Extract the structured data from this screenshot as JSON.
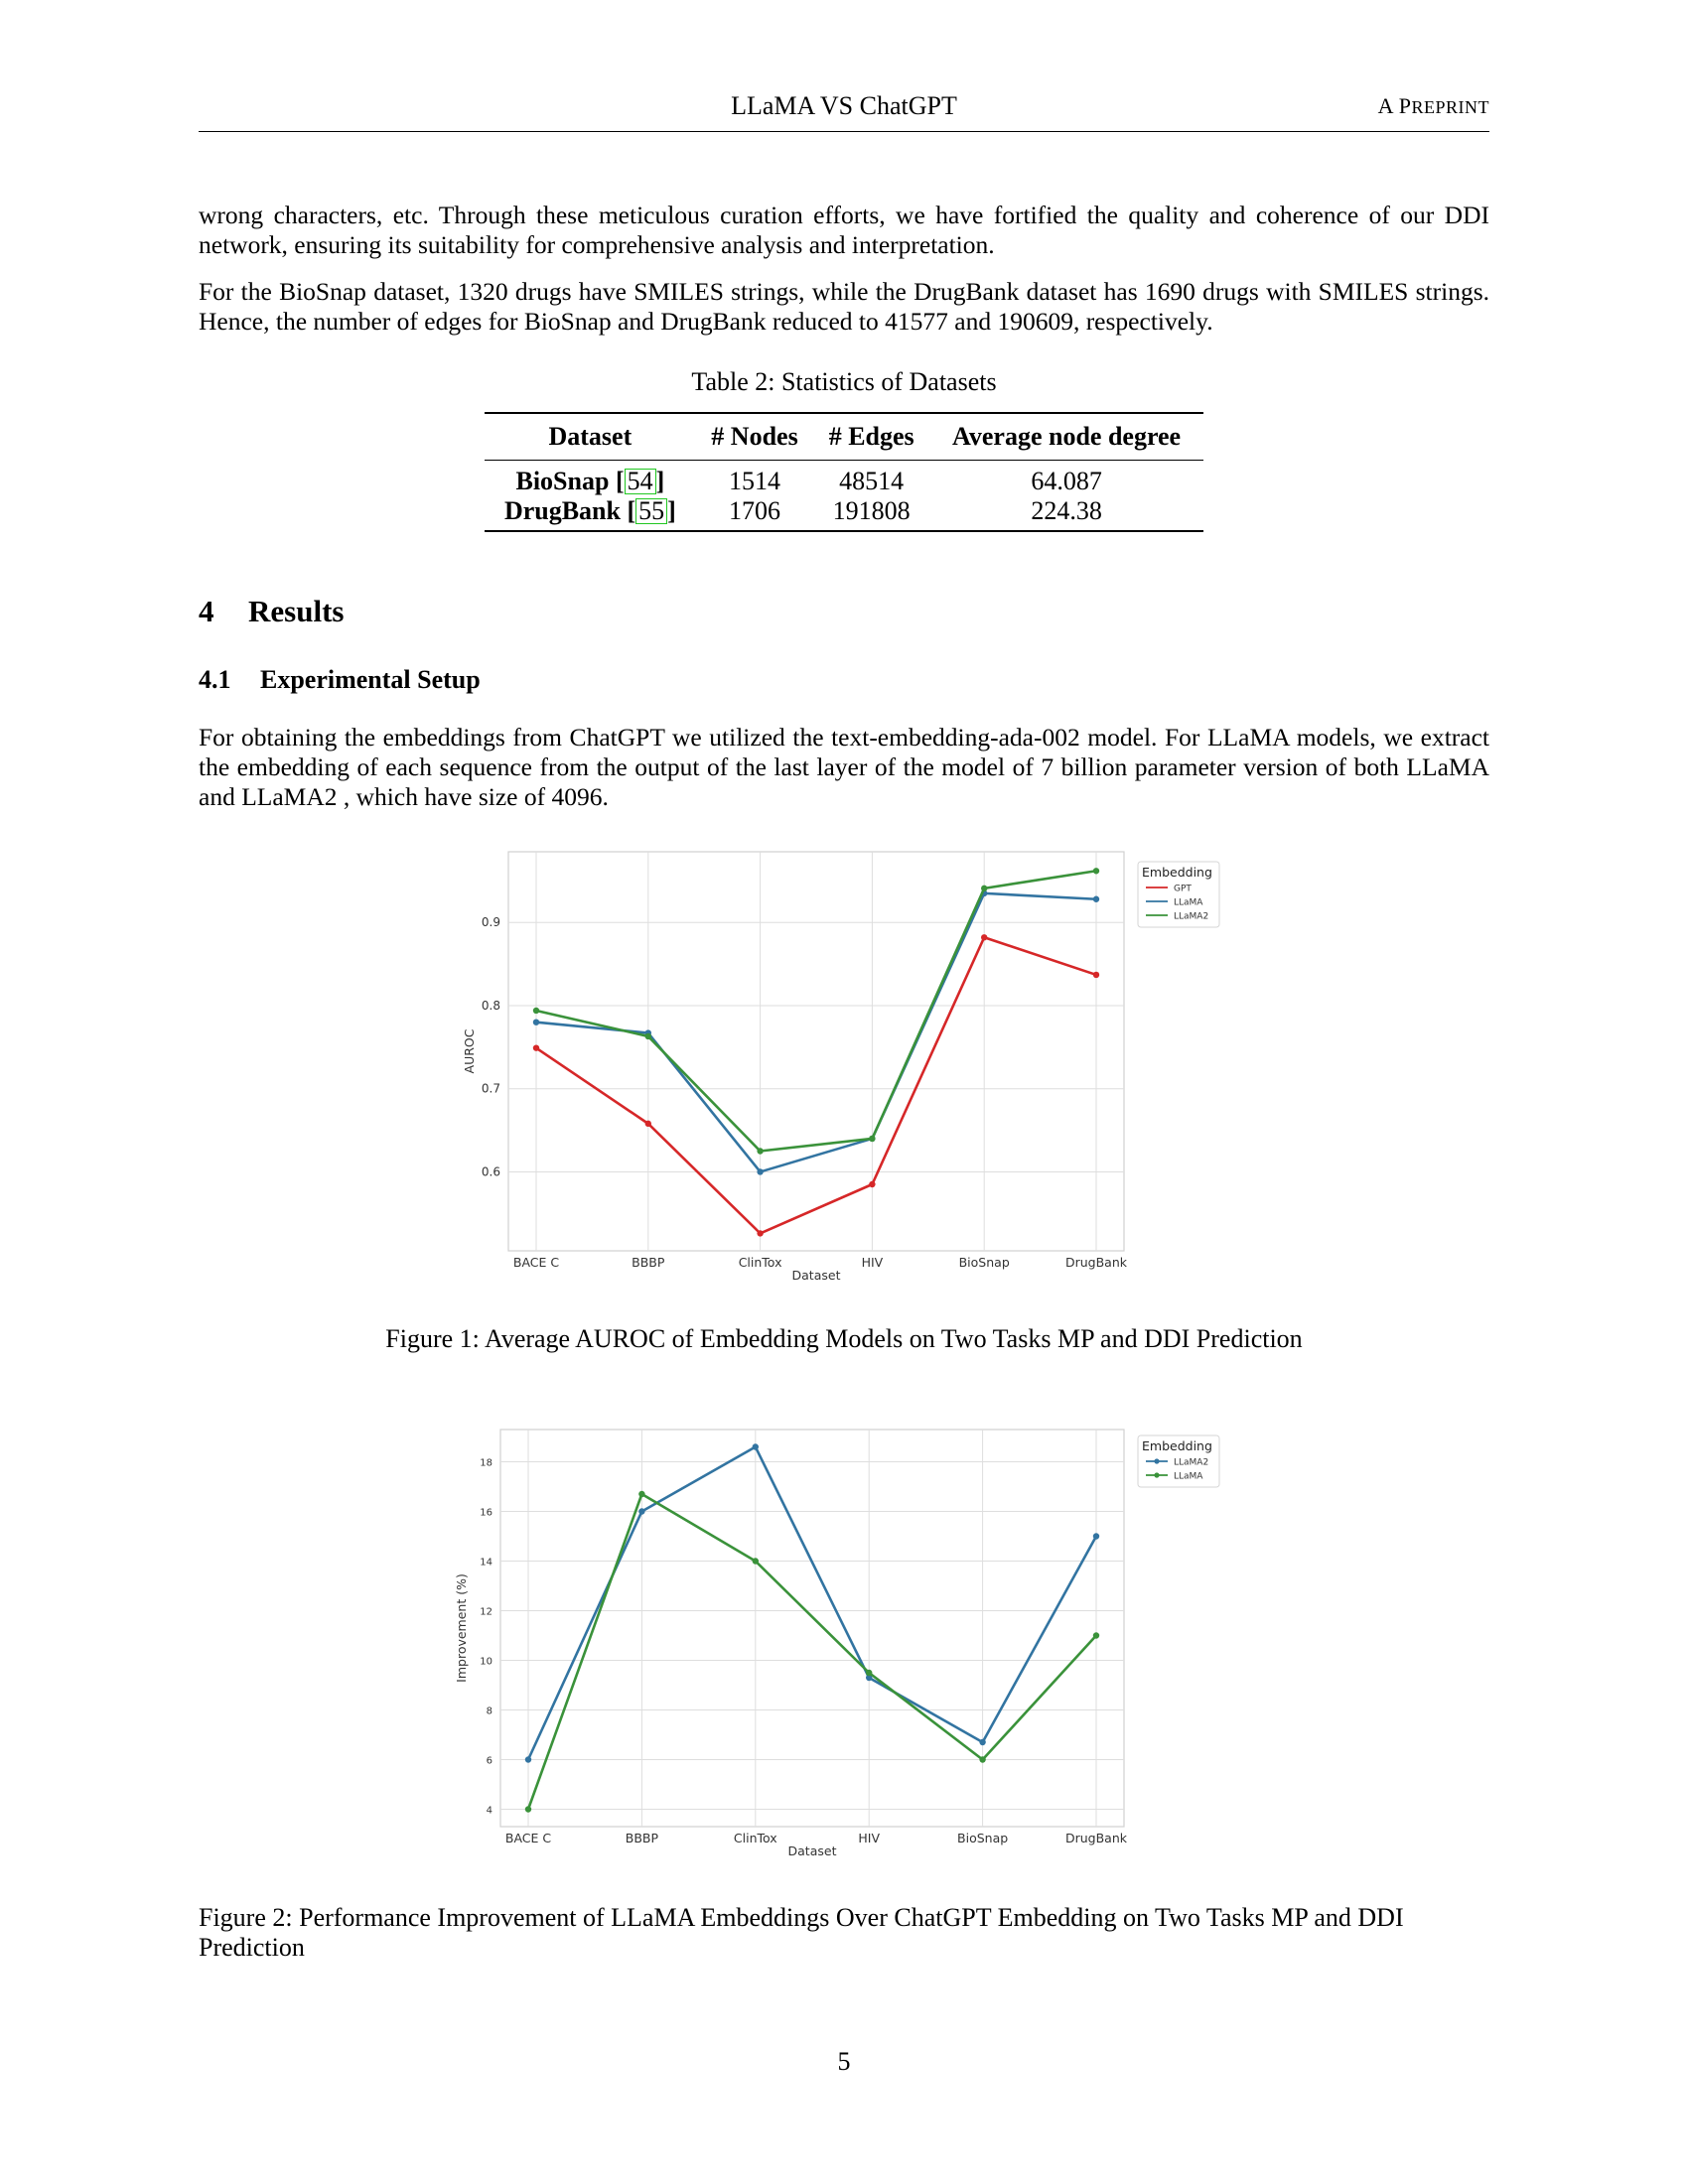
{
  "header": {
    "title": "LLaMA VS ChatGPT",
    "right": "A PREPRINT"
  },
  "paragraphs": {
    "p1": "wrong characters, etc. Through these meticulous curation efforts, we have fortified the quality and coherence of our DDI network, ensuring its suitability for comprehensive analysis and interpretation.",
    "p2": "For the BioSnap dataset, 1320 drugs have SMILES strings, while the DrugBank dataset has 1690 drugs with SMILES strings. Hence, the number of edges for BioSnap and DrugBank reduced to 41577 and 190609, respectively.",
    "p3": "For obtaining the embeddings from ChatGPT we utilized the text-embedding-ada-002 model. For LLaMA models, we extract the embedding of each sequence from the output of the last layer of the model of 7 billion parameter version of both LLaMA and LLaMA2 , which have size of 4096."
  },
  "table": {
    "caption": "Table 2: Statistics of Datasets",
    "headers": [
      "Dataset",
      "# Nodes",
      "# Edges",
      "Average node degree"
    ],
    "rows": [
      {
        "name": "BioSnap",
        "cite": "54",
        "nodes": "1514",
        "edges": "48514",
        "degree": "64.087"
      },
      {
        "name": "DrugBank",
        "cite": "55",
        "nodes": "1706",
        "edges": "191808",
        "degree": "224.38"
      }
    ]
  },
  "sections": {
    "s4_num": "4",
    "s4_title": "Results",
    "s41_num": "4.1",
    "s41_title": "Experimental Setup"
  },
  "figures": {
    "fig1_caption": "Figure 1: Average AUROC of Embedding Models on Two Tasks MP and DDI Prediction",
    "fig2_caption": "Figure 2: Performance Improvement of LLaMA Embeddings Over ChatGPT Embedding on Two Tasks MP and DDI Prediction"
  },
  "page_number": "5",
  "chart_data": [
    {
      "type": "line",
      "xlabel": "Dataset",
      "ylabel": "AUROC",
      "categories": [
        "BACE C",
        "BBBP",
        "ClinTox",
        "HIV",
        "BioSnap",
        "DrugBank"
      ],
      "ylim": [
        0.505,
        0.985
      ],
      "yticks": [
        0.6,
        0.7,
        0.8,
        0.9
      ],
      "grid": true,
      "legend": {
        "title": "Embedding",
        "placement": "outside-top-right",
        "marker": false
      },
      "series": [
        {
          "name": "GPT",
          "color": "#d62728",
          "values": [
            0.749,
            0.658,
            0.526,
            0.585,
            0.882,
            0.837
          ]
        },
        {
          "name": "LLaMA",
          "color": "#3274a1",
          "values": [
            0.78,
            0.767,
            0.6,
            0.64,
            0.935,
            0.928
          ]
        },
        {
          "name": "LLaMA2",
          "color": "#3a923a",
          "values": [
            0.794,
            0.763,
            0.625,
            0.64,
            0.941,
            0.962
          ]
        }
      ]
    },
    {
      "type": "line",
      "xlabel": "Dataset",
      "ylabel": "Improvement (%)",
      "categories": [
        "BACE C",
        "BBBP",
        "ClinTox",
        "HIV",
        "BioSnap",
        "DrugBank"
      ],
      "ylim": [
        3.3,
        19.3
      ],
      "yticks": [
        4,
        6,
        8,
        10,
        12,
        14,
        16,
        18
      ],
      "grid": true,
      "legend": {
        "title": "Embedding",
        "placement": "outside-top-right",
        "marker": true
      },
      "series": [
        {
          "name": "LLaMA2",
          "color": "#3274a1",
          "values": [
            6.0,
            16.0,
            18.6,
            9.3,
            6.7,
            15.0
          ]
        },
        {
          "name": "LLaMA",
          "color": "#3a923a",
          "values": [
            4.0,
            16.7,
            14.0,
            9.5,
            6.0,
            11.0
          ]
        }
      ]
    }
  ]
}
